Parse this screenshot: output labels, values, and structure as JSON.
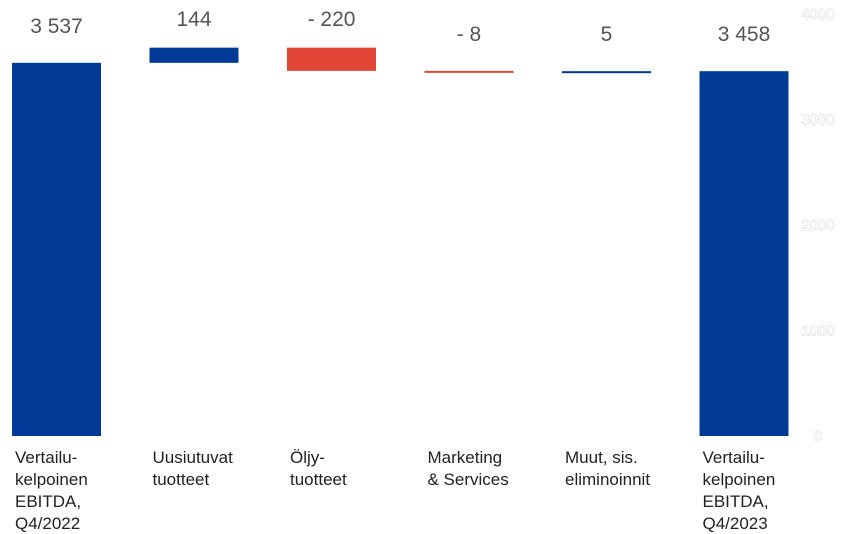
{
  "chart_data": {
    "type": "bar",
    "subtype": "waterfall",
    "categories": [
      [
        "Vertailu-",
        "kelpoinen",
        "EBITDA,",
        "Q4/2022"
      ],
      [
        "Uusiutuvat",
        "tuotteet"
      ],
      [
        "Öljy-",
        "tuotteet"
      ],
      [
        "Marketing",
        "& Services"
      ],
      [
        "Muut, sis.",
        "eliminoinnit"
      ],
      [
        "Vertailu-",
        "kelpoinen",
        "EBITDA,",
        "Q4/2023"
      ]
    ],
    "values": [
      3537,
      144,
      -220,
      -8,
      5,
      3458
    ],
    "value_labels": [
      "3 537",
      "144",
      "- 220",
      "- 8",
      "5",
      "3 458"
    ],
    "bar_kinds": [
      "total",
      "delta",
      "delta",
      "delta",
      "delta",
      "total"
    ],
    "ylim": [
      0,
      4000
    ],
    "yticks": [
      "0",
      "1000",
      "2000",
      "3000",
      "4000"
    ],
    "ytick_values": [
      0,
      1000,
      2000,
      3000,
      4000
    ],
    "y_axis_side": "right",
    "grid": false,
    "colors": {
      "total": "#003a96",
      "increase": "#003a96",
      "decrease": "#e04535"
    }
  }
}
